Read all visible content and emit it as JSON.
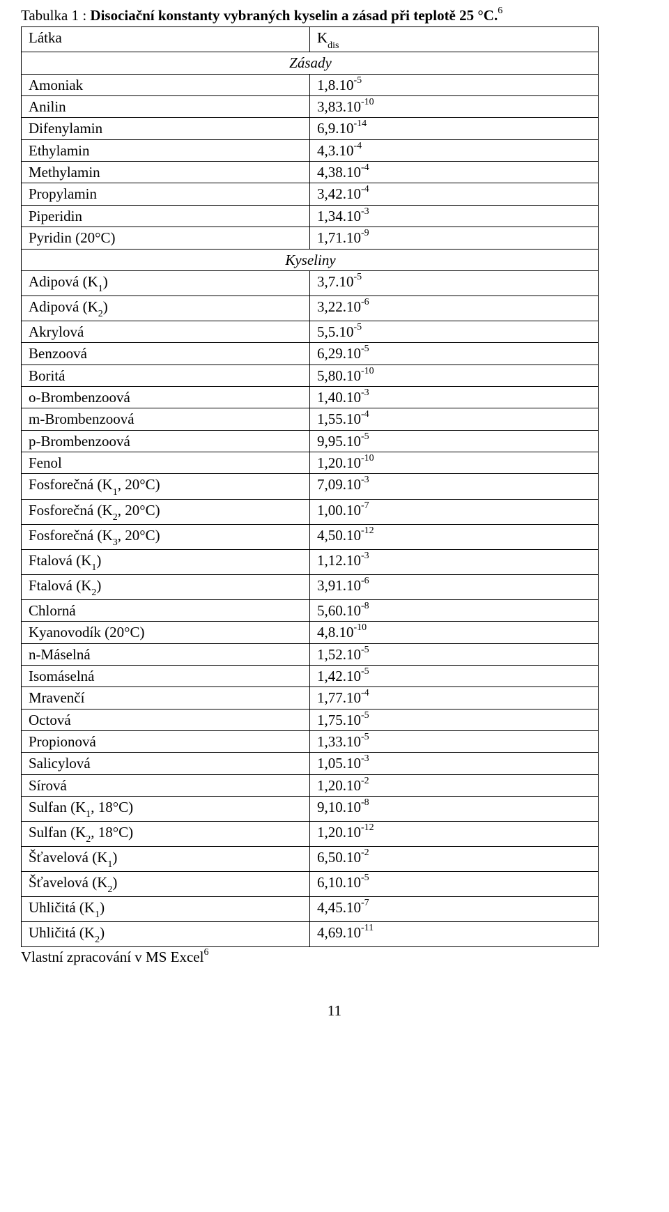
{
  "caption_prefix": "Tabulka 1 : ",
  "caption_title": "Disociační konstanty vybraných kyselin a zásad při teplotě 25 °C.",
  "caption_note": "6",
  "header_col1": "Látka",
  "header_col2_prefix": "K",
  "header_col2_sub": "dis",
  "sections": {
    "bases": "Zásady",
    "acids": "Kyseliny"
  },
  "bases": [
    {
      "name": "Amoniak",
      "mant": "1,8.10",
      "exp": "-5"
    },
    {
      "name": "Anilin",
      "mant": "3,83.10",
      "exp": "-10"
    },
    {
      "name": "Difenylamin",
      "mant": "6,9.10",
      "exp": "-14"
    },
    {
      "name": "Ethylamin",
      "mant": "4,3.10",
      "exp": "-4"
    },
    {
      "name": "Methylamin",
      "mant": "4,38.10",
      "exp": "-4"
    },
    {
      "name": "Propylamin",
      "mant": "3,42.10",
      "exp": "-4"
    },
    {
      "name": "Piperidin",
      "mant": "1,34.10",
      "exp": "-3"
    },
    {
      "name": "Pyridin (20°C)",
      "mant": "1,71.10",
      "exp": "-9"
    }
  ],
  "acids": [
    {
      "name": "Adipová (K",
      "sub": "1",
      "name2": ")",
      "mant": "3,7.10",
      "exp": "-5"
    },
    {
      "name": "Adipová (K",
      "sub": "2",
      "name2": ")",
      "mant": "3,22.10",
      "exp": "-6"
    },
    {
      "name": "Akrylová",
      "mant": "5,5.10",
      "exp": "-5"
    },
    {
      "name": "Benzoová",
      "mant": "6,29.10",
      "exp": "-5"
    },
    {
      "name": "Boritá",
      "mant": "5,80.10",
      "exp": "-10"
    },
    {
      "name": "o-Brombenzoová",
      "mant": "1,40.10",
      "exp": "-3"
    },
    {
      "name": "m-Brombenzoová",
      "mant": "1,55.10",
      "exp": "-4"
    },
    {
      "name": "p-Brombenzoová",
      "mant": "9,95.10",
      "exp": "-5"
    },
    {
      "name": "Fenol",
      "mant": "1,20.10",
      "exp": "-10"
    },
    {
      "name": "Fosforečná (K",
      "sub": "1",
      "name2": ", 20°C)",
      "mant": "7,09.10",
      "exp": "-3"
    },
    {
      "name": "Fosforečná (K",
      "sub": "2",
      "name2": ", 20°C)",
      "mant": "1,00.10",
      "exp": "-7"
    },
    {
      "name": "Fosforečná (K",
      "sub": "3",
      "name2": ", 20°C)",
      "mant": "4,50.10",
      "exp": "-12"
    },
    {
      "name": "Ftalová (K",
      "sub": "1",
      "name2": ")",
      "mant": "1,12.10",
      "exp": "-3"
    },
    {
      "name": "Ftalová (K",
      "sub": "2",
      "name2": ")",
      "mant": "3,91.10",
      "exp": "-6"
    },
    {
      "name": "Chlorná",
      "mant": "5,60.10",
      "exp": "-8"
    },
    {
      "name": "Kyanovodík (20°C)",
      "mant": "4,8.10",
      "exp": "-10"
    },
    {
      "name": "n-Máselná",
      "mant": "1,52.10",
      "exp": "-5"
    },
    {
      "name": "Isomáselná",
      "mant": "1,42.10",
      "exp": "-5"
    },
    {
      "name": "Mravenčí",
      "mant": "1,77.10",
      "exp": "-4"
    },
    {
      "name": "Octová",
      "mant": "1,75.10",
      "exp": "-5"
    },
    {
      "name": "Propionová",
      "mant": "1,33.10",
      "exp": "-5"
    },
    {
      "name": "Salicylová",
      "mant": "1,05.10",
      "exp": "-3"
    },
    {
      "name": "Sírová",
      "mant": "1,20.10",
      "exp": "-2"
    },
    {
      "name": "Sulfan (K",
      "sub": "1",
      "name2": ", 18°C)",
      "mant": "9,10.10",
      "exp": "-8"
    },
    {
      "name": "Sulfan (K",
      "sub": "2",
      "name2": ", 18°C)",
      "mant": "1,20.10",
      "exp": "-12"
    },
    {
      "name": "Šťavelová (K",
      "sub": "1",
      "name2": ")",
      "mant": "6,50.10",
      "exp": "-2"
    },
    {
      "name": "Šťavelová (K",
      "sub": "2",
      "name2": ")",
      "mant": "6,10.10",
      "exp": "-5"
    },
    {
      "name": "Uhličitá (K",
      "sub": "1",
      "name2": ")",
      "mant": "4,45.10",
      "exp": "-7"
    },
    {
      "name": "Uhličitá (K",
      "sub": "2",
      "name2": ")",
      "mant": "4,69.10",
      "exp": "-11"
    }
  ],
  "footnote_text": "Vlastní zpracování v MS Excel",
  "footnote_note": "6",
  "page_number": "11"
}
